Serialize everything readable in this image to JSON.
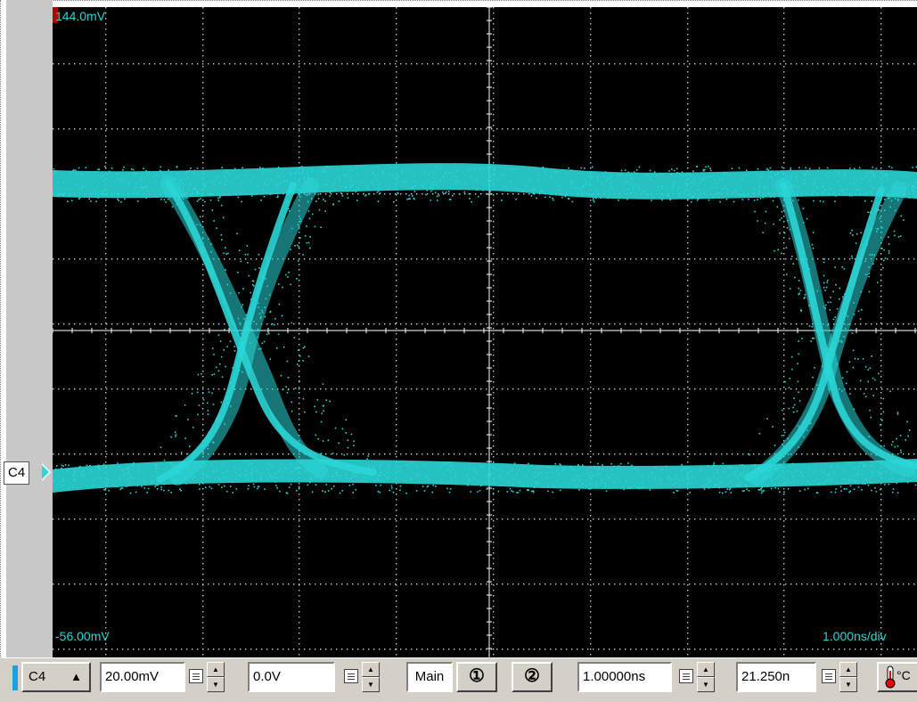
{
  "screen": {
    "top_scale_label": "144.0mV",
    "bottom_scale_label": "-56.00mV",
    "timebase_label": "1.000ns/div",
    "channel_marker": "C4",
    "colors": {
      "trace": "#2ad6d6",
      "background": "#000000",
      "grid": "#ffffff"
    }
  },
  "toolbar": {
    "channel_select": "C4",
    "channel_select_arrow": "▲",
    "volts_per_div": "20.00mV",
    "offset": "0.0V",
    "timebase_mode": "Main",
    "zoom1_icon": "zoom-1-magnifier-icon",
    "zoom2_icon": "zoom-2-magnifier-icon",
    "time_per_div": "1.00000ns",
    "delay": "21.250n",
    "temperature_icon": "thermometer-icon"
  }
}
